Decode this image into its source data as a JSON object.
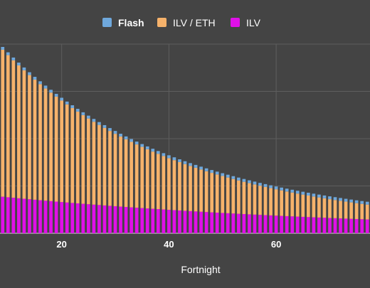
{
  "chart_data": {
    "type": "bar",
    "stacked": true,
    "xlabel": "Fortnight",
    "ylabel": "",
    "x_start": 9,
    "x_end": 77,
    "xlim": [
      8.5,
      77.5
    ],
    "ylim": [
      0,
      1
    ],
    "x_ticks": [
      20,
      40,
      60
    ],
    "grid": true,
    "legend_position": "top-center",
    "legend": [
      {
        "name": "Flash",
        "color": "#6fa8dc",
        "emphasized": true
      },
      {
        "name": "ILV / ETH",
        "color": "#f6b26b",
        "emphasized": false
      },
      {
        "name": "ILV",
        "color": "#e010e8",
        "emphasized": false
      }
    ],
    "series": [
      {
        "name": "ILV",
        "color": "#e010e8",
        "start": 0.193,
        "decay": 0.0143
      },
      {
        "name": "ILV / ETH",
        "color": "#f6b26b",
        "start": 0.777,
        "decay": 0.0337
      },
      {
        "name": "Flash",
        "color": "#6fa8dc",
        "constant": 0.015
      }
    ]
  },
  "colors": {
    "background": "#444444",
    "grid": "#5e5e5e",
    "axis": "#dddddd",
    "text": "#ffffff"
  }
}
